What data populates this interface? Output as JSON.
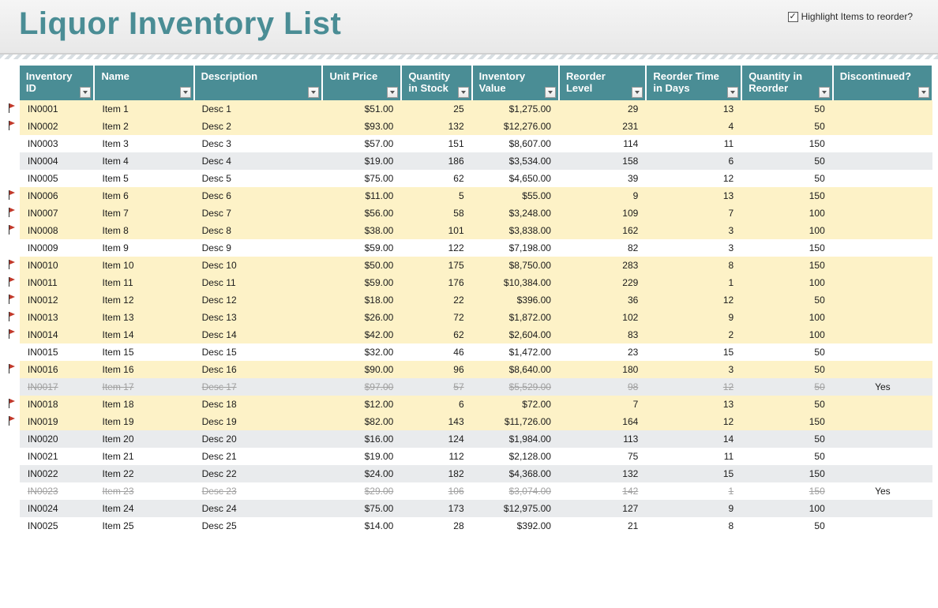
{
  "title": "Liquor Inventory List",
  "highlight_label": "Highlight Items to reorder?",
  "highlight_checked": true,
  "colors": {
    "header_bg": "#4a8d95",
    "title_color": "#4a8d95",
    "row_alt": "#e9ebed",
    "row_flag": "#fdf2c7",
    "flag_icon": "#c0392b"
  },
  "columns": [
    {
      "key": "id",
      "label": "Inventory ID",
      "align": "left",
      "cls": "col-id"
    },
    {
      "key": "name",
      "label": "Name",
      "align": "left",
      "cls": "col-name"
    },
    {
      "key": "desc",
      "label": "Description",
      "align": "left",
      "cls": "col-desc"
    },
    {
      "key": "price",
      "label": "Unit Price",
      "align": "right",
      "cls": "col-price"
    },
    {
      "key": "stock",
      "label": "Quantity in Stock",
      "align": "right",
      "cls": "col-qty"
    },
    {
      "key": "value",
      "label": "Inventory Value",
      "align": "right",
      "cls": "col-val"
    },
    {
      "key": "reorder",
      "label": "Reorder Level",
      "align": "right",
      "cls": "col-reord"
    },
    {
      "key": "days",
      "label": "Reorder Time in Days",
      "align": "right",
      "cls": "col-days"
    },
    {
      "key": "qreorder",
      "label": "Quantity in Reorder",
      "align": "right",
      "cls": "col-qreo"
    },
    {
      "key": "disc",
      "label": "Discontinued?",
      "align": "center",
      "cls": "col-disc"
    }
  ],
  "rows": [
    {
      "flag": true,
      "highlight": true,
      "id": "IN0001",
      "name": "Item 1",
      "desc": "Desc 1",
      "price": "$51.00",
      "stock": "25",
      "value": "$1,275.00",
      "reorder": "29",
      "days": "13",
      "qreorder": "50",
      "disc": ""
    },
    {
      "flag": true,
      "highlight": true,
      "id": "IN0002",
      "name": "Item 2",
      "desc": "Desc 2",
      "price": "$93.00",
      "stock": "132",
      "value": "$12,276.00",
      "reorder": "231",
      "days": "4",
      "qreorder": "50",
      "disc": ""
    },
    {
      "flag": false,
      "highlight": false,
      "id": "IN0003",
      "name": "Item 3",
      "desc": "Desc 3",
      "price": "$57.00",
      "stock": "151",
      "value": "$8,607.00",
      "reorder": "114",
      "days": "11",
      "qreorder": "150",
      "disc": ""
    },
    {
      "flag": false,
      "highlight": false,
      "alt": true,
      "id": "IN0004",
      "name": "Item 4",
      "desc": "Desc 4",
      "price": "$19.00",
      "stock": "186",
      "value": "$3,534.00",
      "reorder": "158",
      "days": "6",
      "qreorder": "50",
      "disc": ""
    },
    {
      "flag": false,
      "highlight": false,
      "id": "IN0005",
      "name": "Item 5",
      "desc": "Desc 5",
      "price": "$75.00",
      "stock": "62",
      "value": "$4,650.00",
      "reorder": "39",
      "days": "12",
      "qreorder": "50",
      "disc": ""
    },
    {
      "flag": true,
      "highlight": true,
      "id": "IN0006",
      "name": "Item 6",
      "desc": "Desc 6",
      "price": "$11.00",
      "stock": "5",
      "value": "$55.00",
      "reorder": "9",
      "days": "13",
      "qreorder": "150",
      "disc": ""
    },
    {
      "flag": true,
      "highlight": true,
      "id": "IN0007",
      "name": "Item 7",
      "desc": "Desc 7",
      "price": "$56.00",
      "stock": "58",
      "value": "$3,248.00",
      "reorder": "109",
      "days": "7",
      "qreorder": "100",
      "disc": ""
    },
    {
      "flag": true,
      "highlight": true,
      "id": "IN0008",
      "name": "Item 8",
      "desc": "Desc 8",
      "price": "$38.00",
      "stock": "101",
      "value": "$3,838.00",
      "reorder": "162",
      "days": "3",
      "qreorder": "100",
      "disc": ""
    },
    {
      "flag": false,
      "highlight": false,
      "id": "IN0009",
      "name": "Item 9",
      "desc": "Desc 9",
      "price": "$59.00",
      "stock": "122",
      "value": "$7,198.00",
      "reorder": "82",
      "days": "3",
      "qreorder": "150",
      "disc": ""
    },
    {
      "flag": true,
      "highlight": true,
      "id": "IN0010",
      "name": "Item 10",
      "desc": "Desc 10",
      "price": "$50.00",
      "stock": "175",
      "value": "$8,750.00",
      "reorder": "283",
      "days": "8",
      "qreorder": "150",
      "disc": ""
    },
    {
      "flag": true,
      "highlight": true,
      "id": "IN0011",
      "name": "Item 11",
      "desc": "Desc 11",
      "price": "$59.00",
      "stock": "176",
      "value": "$10,384.00",
      "reorder": "229",
      "days": "1",
      "qreorder": "100",
      "disc": ""
    },
    {
      "flag": true,
      "highlight": true,
      "id": "IN0012",
      "name": "Item 12",
      "desc": "Desc 12",
      "price": "$18.00",
      "stock": "22",
      "value": "$396.00",
      "reorder": "36",
      "days": "12",
      "qreorder": "50",
      "disc": ""
    },
    {
      "flag": true,
      "highlight": true,
      "id": "IN0013",
      "name": "Item 13",
      "desc": "Desc 13",
      "price": "$26.00",
      "stock": "72",
      "value": "$1,872.00",
      "reorder": "102",
      "days": "9",
      "qreorder": "100",
      "disc": ""
    },
    {
      "flag": true,
      "highlight": true,
      "id": "IN0014",
      "name": "Item 14",
      "desc": "Desc 14",
      "price": "$42.00",
      "stock": "62",
      "value": "$2,604.00",
      "reorder": "83",
      "days": "2",
      "qreorder": "100",
      "disc": ""
    },
    {
      "flag": false,
      "highlight": false,
      "id": "IN0015",
      "name": "Item 15",
      "desc": "Desc 15",
      "price": "$32.00",
      "stock": "46",
      "value": "$1,472.00",
      "reorder": "23",
      "days": "15",
      "qreorder": "50",
      "disc": ""
    },
    {
      "flag": true,
      "highlight": true,
      "id": "IN0016",
      "name": "Item 16",
      "desc": "Desc 16",
      "price": "$90.00",
      "stock": "96",
      "value": "$8,640.00",
      "reorder": "180",
      "days": "3",
      "qreorder": "50",
      "disc": ""
    },
    {
      "flag": false,
      "highlight": false,
      "alt": true,
      "discontinued": true,
      "id": "IN0017",
      "name": "Item 17",
      "desc": "Desc 17",
      "price": "$97.00",
      "stock": "57",
      "value": "$5,529.00",
      "reorder": "98",
      "days": "12",
      "qreorder": "50",
      "disc": "Yes"
    },
    {
      "flag": true,
      "highlight": true,
      "id": "IN0018",
      "name": "Item 18",
      "desc": "Desc 18",
      "price": "$12.00",
      "stock": "6",
      "value": "$72.00",
      "reorder": "7",
      "days": "13",
      "qreorder": "50",
      "disc": ""
    },
    {
      "flag": true,
      "highlight": true,
      "id": "IN0019",
      "name": "Item 19",
      "desc": "Desc 19",
      "price": "$82.00",
      "stock": "143",
      "value": "$11,726.00",
      "reorder": "164",
      "days": "12",
      "qreorder": "150",
      "disc": ""
    },
    {
      "flag": false,
      "highlight": false,
      "alt": true,
      "id": "IN0020",
      "name": "Item 20",
      "desc": "Desc 20",
      "price": "$16.00",
      "stock": "124",
      "value": "$1,984.00",
      "reorder": "113",
      "days": "14",
      "qreorder": "50",
      "disc": ""
    },
    {
      "flag": false,
      "highlight": false,
      "id": "IN0021",
      "name": "Item 21",
      "desc": "Desc 21",
      "price": "$19.00",
      "stock": "112",
      "value": "$2,128.00",
      "reorder": "75",
      "days": "11",
      "qreorder": "50",
      "disc": ""
    },
    {
      "flag": false,
      "highlight": false,
      "alt": true,
      "id": "IN0022",
      "name": "Item 22",
      "desc": "Desc 22",
      "price": "$24.00",
      "stock": "182",
      "value": "$4,368.00",
      "reorder": "132",
      "days": "15",
      "qreorder": "150",
      "disc": ""
    },
    {
      "flag": false,
      "highlight": false,
      "discontinued": true,
      "id": "IN0023",
      "name": "Item 23",
      "desc": "Desc 23",
      "price": "$29.00",
      "stock": "106",
      "value": "$3,074.00",
      "reorder": "142",
      "days": "1",
      "qreorder": "150",
      "disc": "Yes"
    },
    {
      "flag": false,
      "highlight": false,
      "alt": true,
      "id": "IN0024",
      "name": "Item 24",
      "desc": "Desc 24",
      "price": "$75.00",
      "stock": "173",
      "value": "$12,975.00",
      "reorder": "127",
      "days": "9",
      "qreorder": "100",
      "disc": ""
    },
    {
      "flag": false,
      "highlight": false,
      "id": "IN0025",
      "name": "Item 25",
      "desc": "Desc 25",
      "price": "$14.00",
      "stock": "28",
      "value": "$392.00",
      "reorder": "21",
      "days": "8",
      "qreorder": "50",
      "disc": ""
    }
  ]
}
